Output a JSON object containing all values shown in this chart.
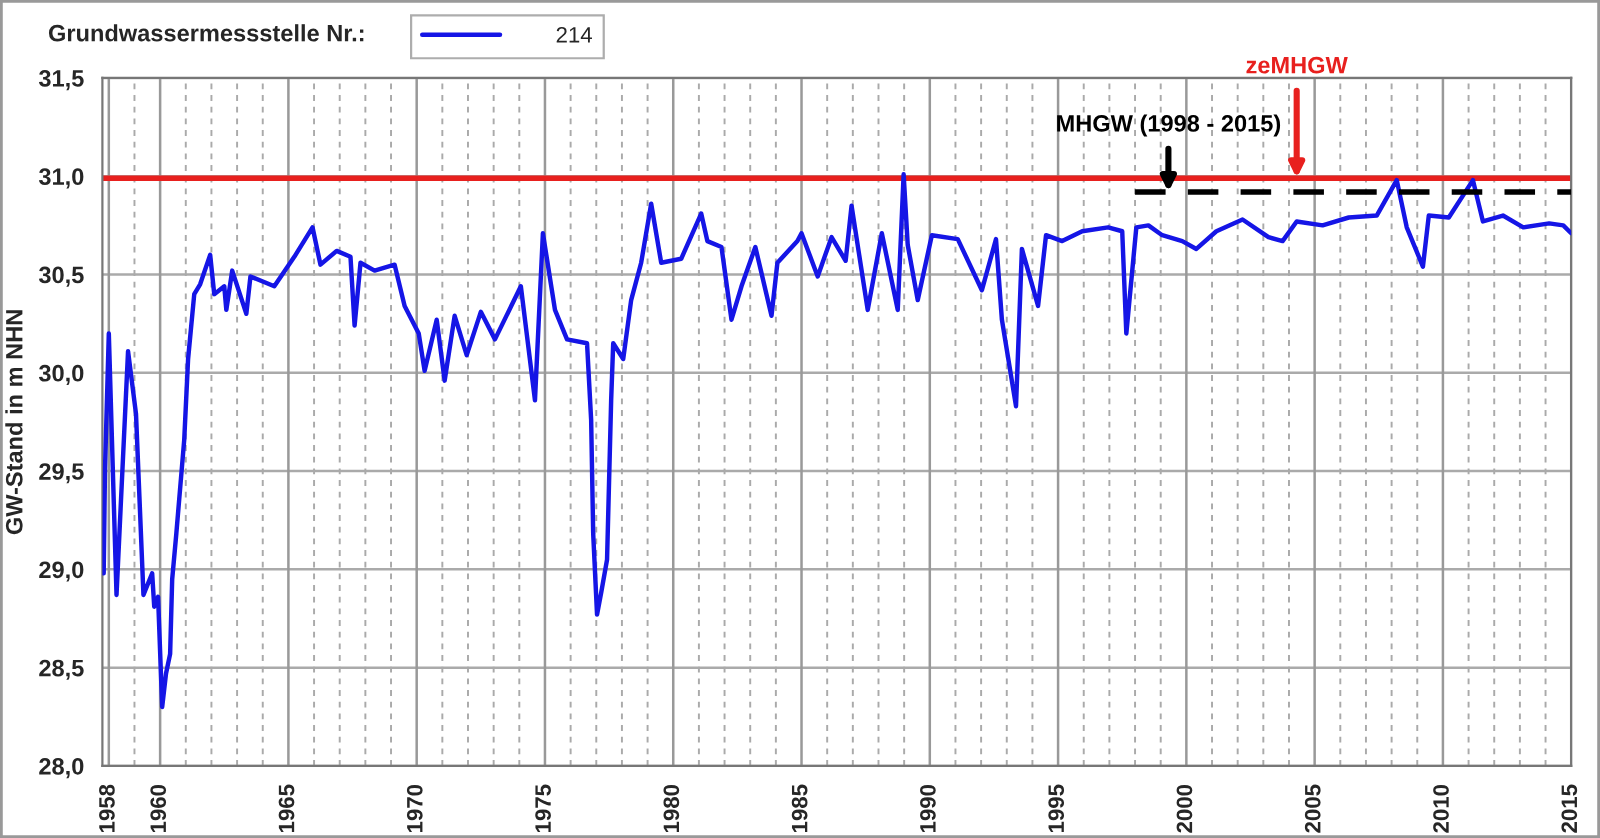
{
  "chart_data": {
    "type": "line",
    "legend_title": "Grundwassermessstelle Nr.:",
    "ylabel": "GW-Stand in m NHN",
    "xlim": [
      1957.75,
      2015
    ],
    "xticks": [
      1958,
      1960,
      1965,
      1970,
      1975,
      1980,
      1985,
      1990,
      1995,
      2000,
      2005,
      2010,
      2015
    ],
    "ylim": [
      28.0,
      31.5
    ],
    "yticks": [
      {
        "value": 28.0,
        "label": "28,0"
      },
      {
        "value": 28.5,
        "label": "28,5"
      },
      {
        "value": 29.0,
        "label": "29,0"
      },
      {
        "value": 29.5,
        "label": "29,5"
      },
      {
        "value": 30.0,
        "label": "30,0"
      },
      {
        "value": 30.5,
        "label": "30,5"
      },
      {
        "value": 31.0,
        "label": "31,0"
      },
      {
        "value": 31.5,
        "label": "31,5"
      }
    ],
    "grid": true,
    "legend": "top left",
    "series": [
      {
        "name": "214",
        "color": "#1515e6",
        "line_style": "solid",
        "x": [
          1957.8,
          1957.85,
          1958.0,
          1958.3,
          1958.75,
          1959.06,
          1959.35,
          1959.69,
          1959.77,
          1959.92,
          1960.08,
          1960.23,
          1960.39,
          1960.47,
          1960.63,
          1960.94,
          1961.09,
          1961.33,
          1961.56,
          1961.95,
          1962.11,
          1962.5,
          1962.58,
          1962.81,
          1963.36,
          1963.52,
          1964.45,
          1965.23,
          1965.94,
          1966.25,
          1966.88,
          1967.42,
          1967.58,
          1967.81,
          1968.36,
          1969.14,
          1969.53,
          1970.08,
          1970.31,
          1970.78,
          1971.09,
          1971.48,
          1971.95,
          1972.5,
          1973.05,
          1974.06,
          1974.61,
          1974.92,
          1975.39,
          1975.86,
          1976.64,
          1976.8,
          1976.88,
          1977.03,
          1977.19,
          1977.42,
          1977.58,
          1977.66,
          1978.05,
          1978.36,
          1978.75,
          1979.14,
          1979.53,
          1980.31,
          1981.09,
          1981.33,
          1981.88,
          1982.27,
          1982.66,
          1983.2,
          1983.83,
          1984.06,
          1984.84,
          1985.0,
          1985.63,
          1986.17,
          1986.72,
          1986.95,
          1987.58,
          1988.13,
          1988.75,
          1988.98,
          1989.14,
          1989.53,
          1990.08,
          1991.09,
          1992.03,
          1992.58,
          1992.81,
          1993.36,
          1993.59,
          1994.22,
          1994.53,
          1995.16,
          1995.94,
          1996.95,
          1997.5,
          1997.66,
          1998.05,
          1998.52,
          1999.06,
          1999.84,
          2000.39,
          2001.17,
          2002.19,
          2003.2,
          2003.75,
          2004.3,
          2005.31,
          2006.33,
          2007.42,
          2008.2,
          2008.59,
          2009.22,
          2009.45,
          2010.23,
          2011.17,
          2011.56,
          2012.34,
          2013.13,
          2014.14,
          2014.69,
          2015.0
        ],
        "values": [
          28.98,
          29.5,
          30.2,
          28.87,
          30.11,
          29.79,
          28.87,
          28.98,
          28.81,
          28.86,
          28.3,
          28.47,
          28.57,
          28.95,
          29.18,
          29.66,
          30.07,
          30.4,
          30.45,
          30.6,
          30.4,
          30.44,
          30.32,
          30.52,
          30.3,
          30.49,
          30.44,
          30.59,
          30.74,
          30.55,
          30.62,
          30.59,
          30.24,
          30.56,
          30.52,
          30.55,
          30.34,
          30.2,
          30.01,
          30.27,
          29.96,
          30.29,
          30.09,
          30.31,
          30.17,
          30.44,
          29.86,
          30.71,
          30.32,
          30.17,
          30.15,
          29.76,
          29.18,
          28.77,
          28.88,
          29.05,
          29.86,
          30.15,
          30.07,
          30.37,
          30.56,
          30.86,
          30.56,
          30.58,
          30.81,
          30.67,
          30.64,
          30.27,
          30.44,
          30.64,
          30.29,
          30.56,
          30.67,
          30.71,
          30.49,
          30.69,
          30.57,
          30.85,
          30.32,
          30.71,
          30.32,
          31.01,
          30.65,
          30.37,
          30.7,
          30.68,
          30.42,
          30.68,
          30.27,
          29.83,
          30.63,
          30.34,
          30.7,
          30.67,
          30.72,
          30.74,
          30.72,
          30.2,
          30.74,
          30.75,
          30.7,
          30.67,
          30.63,
          30.72,
          30.78,
          30.69,
          30.67,
          30.77,
          30.75,
          30.79,
          30.8,
          30.98,
          30.74,
          30.54,
          30.8,
          30.79,
          30.98,
          30.77,
          30.8,
          30.74,
          30.76,
          30.75,
          30.71
        ]
      },
      {
        "color": "#000000",
        "line_style": "dashed",
        "x": [
          1998.0,
          2015.0
        ],
        "values": [
          30.92,
          30.92
        ]
      }
    ],
    "ref_lines": [
      {
        "axis": "y",
        "value": 30.99,
        "color": "#e8201e"
      }
    ],
    "annotations": [
      {
        "text": "MHGW (1998 - 2015)",
        "x": 1999.3,
        "y": 30.92
      },
      {
        "text": "zeMHGW",
        "x": 2004.3,
        "y": 30.99
      }
    ]
  }
}
